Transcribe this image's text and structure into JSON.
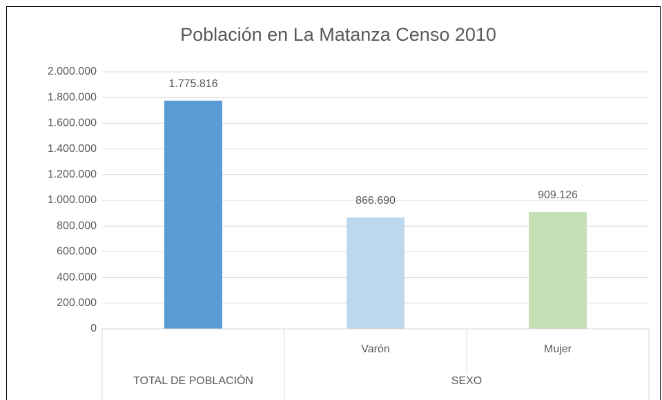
{
  "chart_data": {
    "type": "bar",
    "title": "Población en La Matanza Censo 2010",
    "groups": [
      {
        "name": "TOTAL DE POBLACIÓN",
        "categories": [
          null
        ]
      },
      {
        "name": "SEXO",
        "categories": [
          "Varón",
          "Mujer"
        ]
      }
    ],
    "values": [
      1775816,
      866690,
      909126
    ],
    "value_labels": [
      "1.775.816",
      "866.690",
      "909.126"
    ],
    "colors": [
      "#5b9bd5",
      "#bdd7ee",
      "#c5e0b4"
    ],
    "ylim": [
      0,
      2000000
    ],
    "yticks": [
      0,
      {
        "value": 200000,
        "label": "200.000"
      },
      {
        "value": 400000,
        "label": "400.000"
      },
      {
        "value": 600000,
        "label": "600.000"
      },
      {
        "value": 800000,
        "label": "800.000"
      },
      {
        "value": 1000000,
        "label": "1.000.000"
      },
      {
        "value": 1200000,
        "label": "1.200.000"
      },
      {
        "value": 1400000,
        "label": "1.400.000"
      },
      {
        "value": 1600000,
        "label": "1.600.000"
      },
      {
        "value": 1800000,
        "label": "1.800.000"
      },
      {
        "value": 2000000,
        "label": "2.000.000"
      }
    ],
    "grid": true
  }
}
